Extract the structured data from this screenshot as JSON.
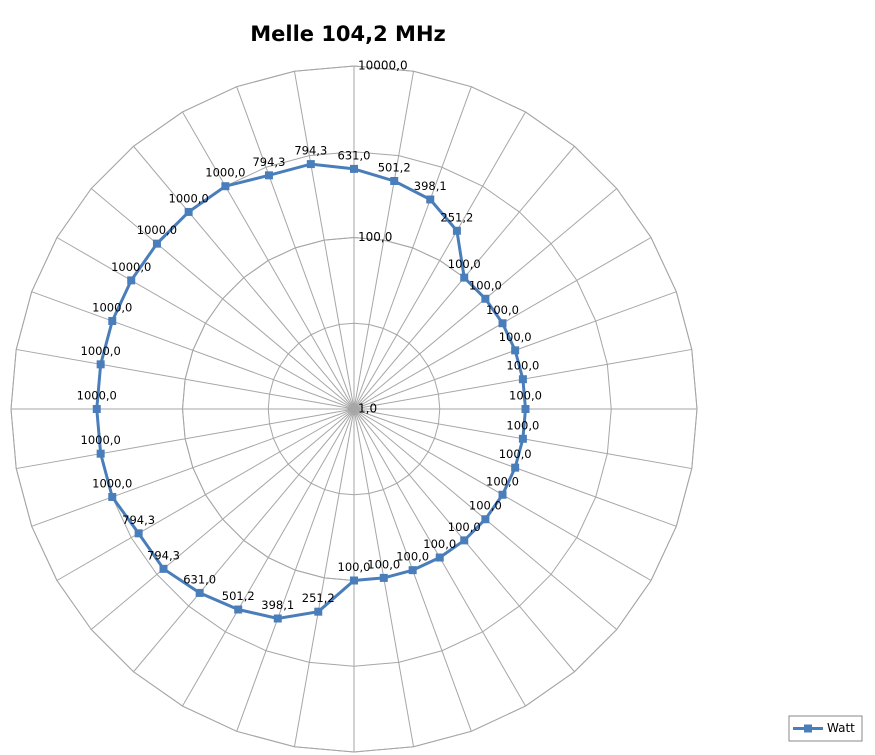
{
  "chart_data": {
    "type": "radar",
    "title": "Melle 104,2 MHz",
    "categories": [
      null,
      null,
      null,
      null,
      null,
      null,
      null,
      null,
      null,
      null,
      null,
      null,
      null,
      null,
      null,
      null,
      null,
      null,
      null,
      null,
      null,
      null,
      null,
      null,
      null,
      null,
      null,
      null,
      null,
      null,
      null,
      null,
      null,
      null,
      null,
      null
    ],
    "series": [
      {
        "name": "Watt",
        "color": "#4a7ebb",
        "values": [
          631,
          501.2,
          398.1,
          251.2,
          100,
          100,
          100,
          100,
          100,
          100,
          100,
          100,
          100,
          100,
          100,
          100,
          100,
          100,
          100,
          251.2,
          398.1,
          501.2,
          631,
          794.3,
          794.3,
          1000,
          1000,
          1000,
          1000,
          1000,
          1000,
          1000,
          1000,
          1000,
          794.3,
          794.3
        ],
        "value_labels": [
          "631,0",
          "501,2",
          "398,1",
          "251,2",
          "100,0",
          "100,0",
          "100,0",
          "100,0",
          "100,0",
          "100,0",
          "100,0",
          "100,0",
          "100,0",
          "100,0",
          "100,0",
          "100,0",
          "100,0",
          "100,0",
          "100,0",
          "251,2",
          "398,1",
          "501,2",
          "631,0",
          "794,3",
          "794,3",
          "1000,0",
          "1000,0",
          "1000,0",
          "1000,0",
          "1000,0",
          "1000,0",
          "1000,0",
          "1000,0",
          "1000,0",
          "794,3",
          "794,3"
        ]
      }
    ],
    "ylim": [
      1,
      10000
    ],
    "yticks": [
      {
        "value": 1,
        "label": "1,0"
      },
      {
        "value": 100,
        "label": "100,0"
      },
      {
        "value": 10000,
        "label": "10000,0"
      }
    ],
    "log_scale": true,
    "grid": true,
    "legend": "bottom-right"
  }
}
